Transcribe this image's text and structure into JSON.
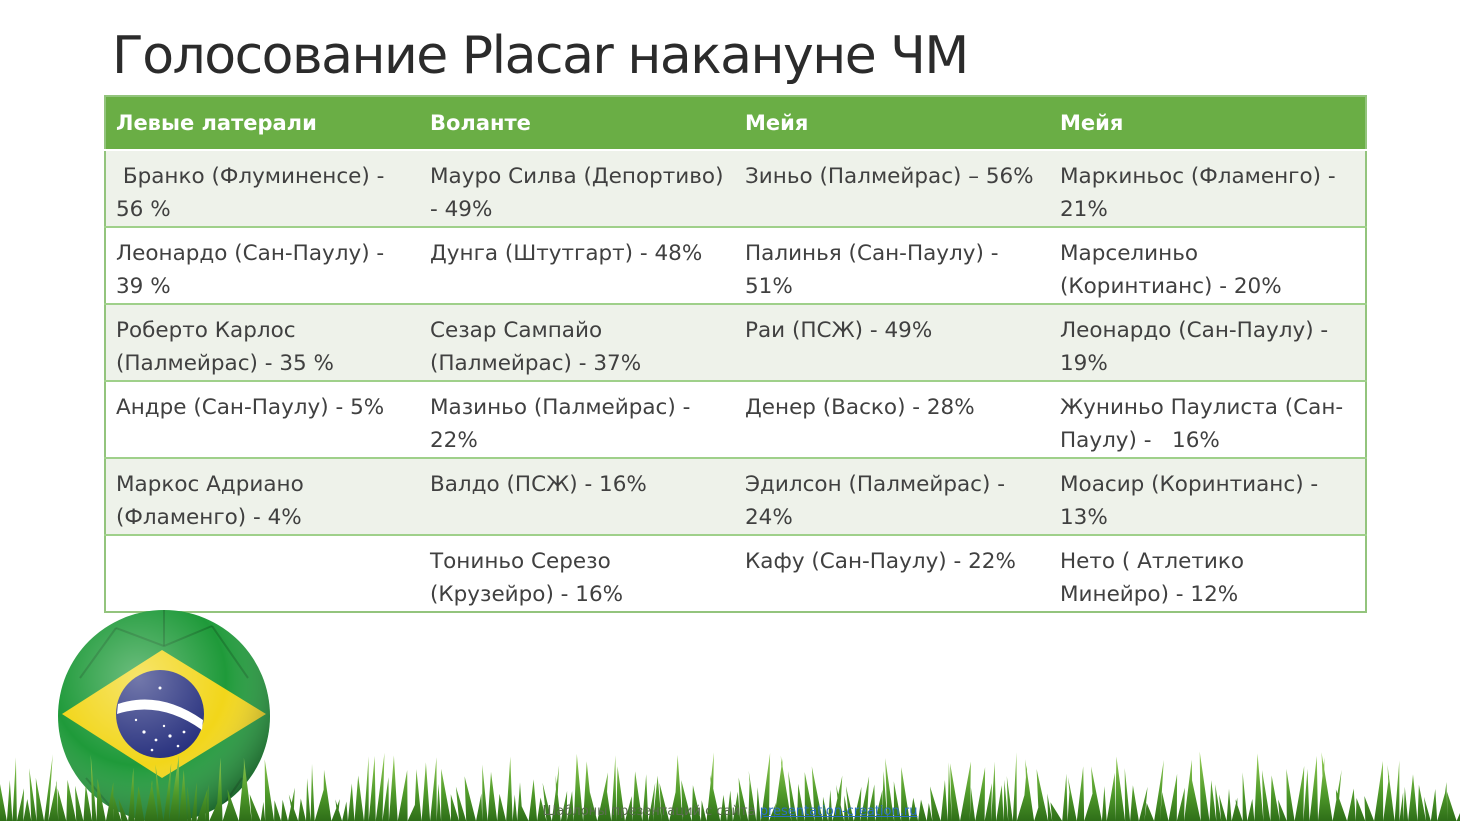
{
  "slide": {
    "title": "Голосование Placar накануне ЧМ"
  },
  "table": {
    "headers": [
      "Левые латерали",
      "Воланте",
      "Мейя",
      "Мейя"
    ],
    "rows": [
      [
        " Бранко (Флуминенсе) - 56 %",
        "Мауро Силва (Депортиво) - 49%",
        "Зиньо (Палмейрас) – 56%",
        "Маркиньос (Фламенго) - 21%"
      ],
      [
        "Леонардо (Сан-Паулу) - 39 %",
        "Дунга (Штутгарт) - 48%",
        "Палинья (Сан-Паулу) - 51%",
        "Марселиньо (Коринтианс) - 20%"
      ],
      [
        "Роберто Карлос (Палмейрас) - 35 %",
        "Сезар Сампайо (Палмейрас) - 37%",
        "Раи (ПСЖ) - 49%",
        "Леонардо (Сан-Паулу) - 19%"
      ],
      [
        "Андре (Сан-Паулу) - 5%",
        "Мазиньо (Палмейрас) - 22%",
        "Денер (Васко) - 28%",
        "Жуниньо Паулиста (Сан-Паулу) -   16%"
      ],
      [
        "Маркос Адриано (Фламенго) - 4%",
        "Валдо (ПСЖ) - 16%",
        "Эдилсон (Палмейрас) - 24%",
        "Моасир (Коринтианс) - 13%"
      ],
      [
        "",
        "Тониньо Серезо (Крузейро) - 16%",
        "Кафу (Сан-Паулу) - 22%",
        "Нето ( Атлетико Минейро) - 12%"
      ]
    ]
  },
  "footer": {
    "text": "Шаблоны презентаций с сайта",
    "link_text": "presentation-creation.ru"
  },
  "decor": {
    "ball_icon": "brazil-flag-ball-icon",
    "grass_icon": "grass-icon",
    "colors": {
      "header_green": "#6aae45",
      "border_green": "#93c47d",
      "stripe": "#eef2ea",
      "flag_green": "#1f9a3a",
      "flag_yellow": "#f2d61a",
      "flag_blue": "#27307e"
    }
  }
}
